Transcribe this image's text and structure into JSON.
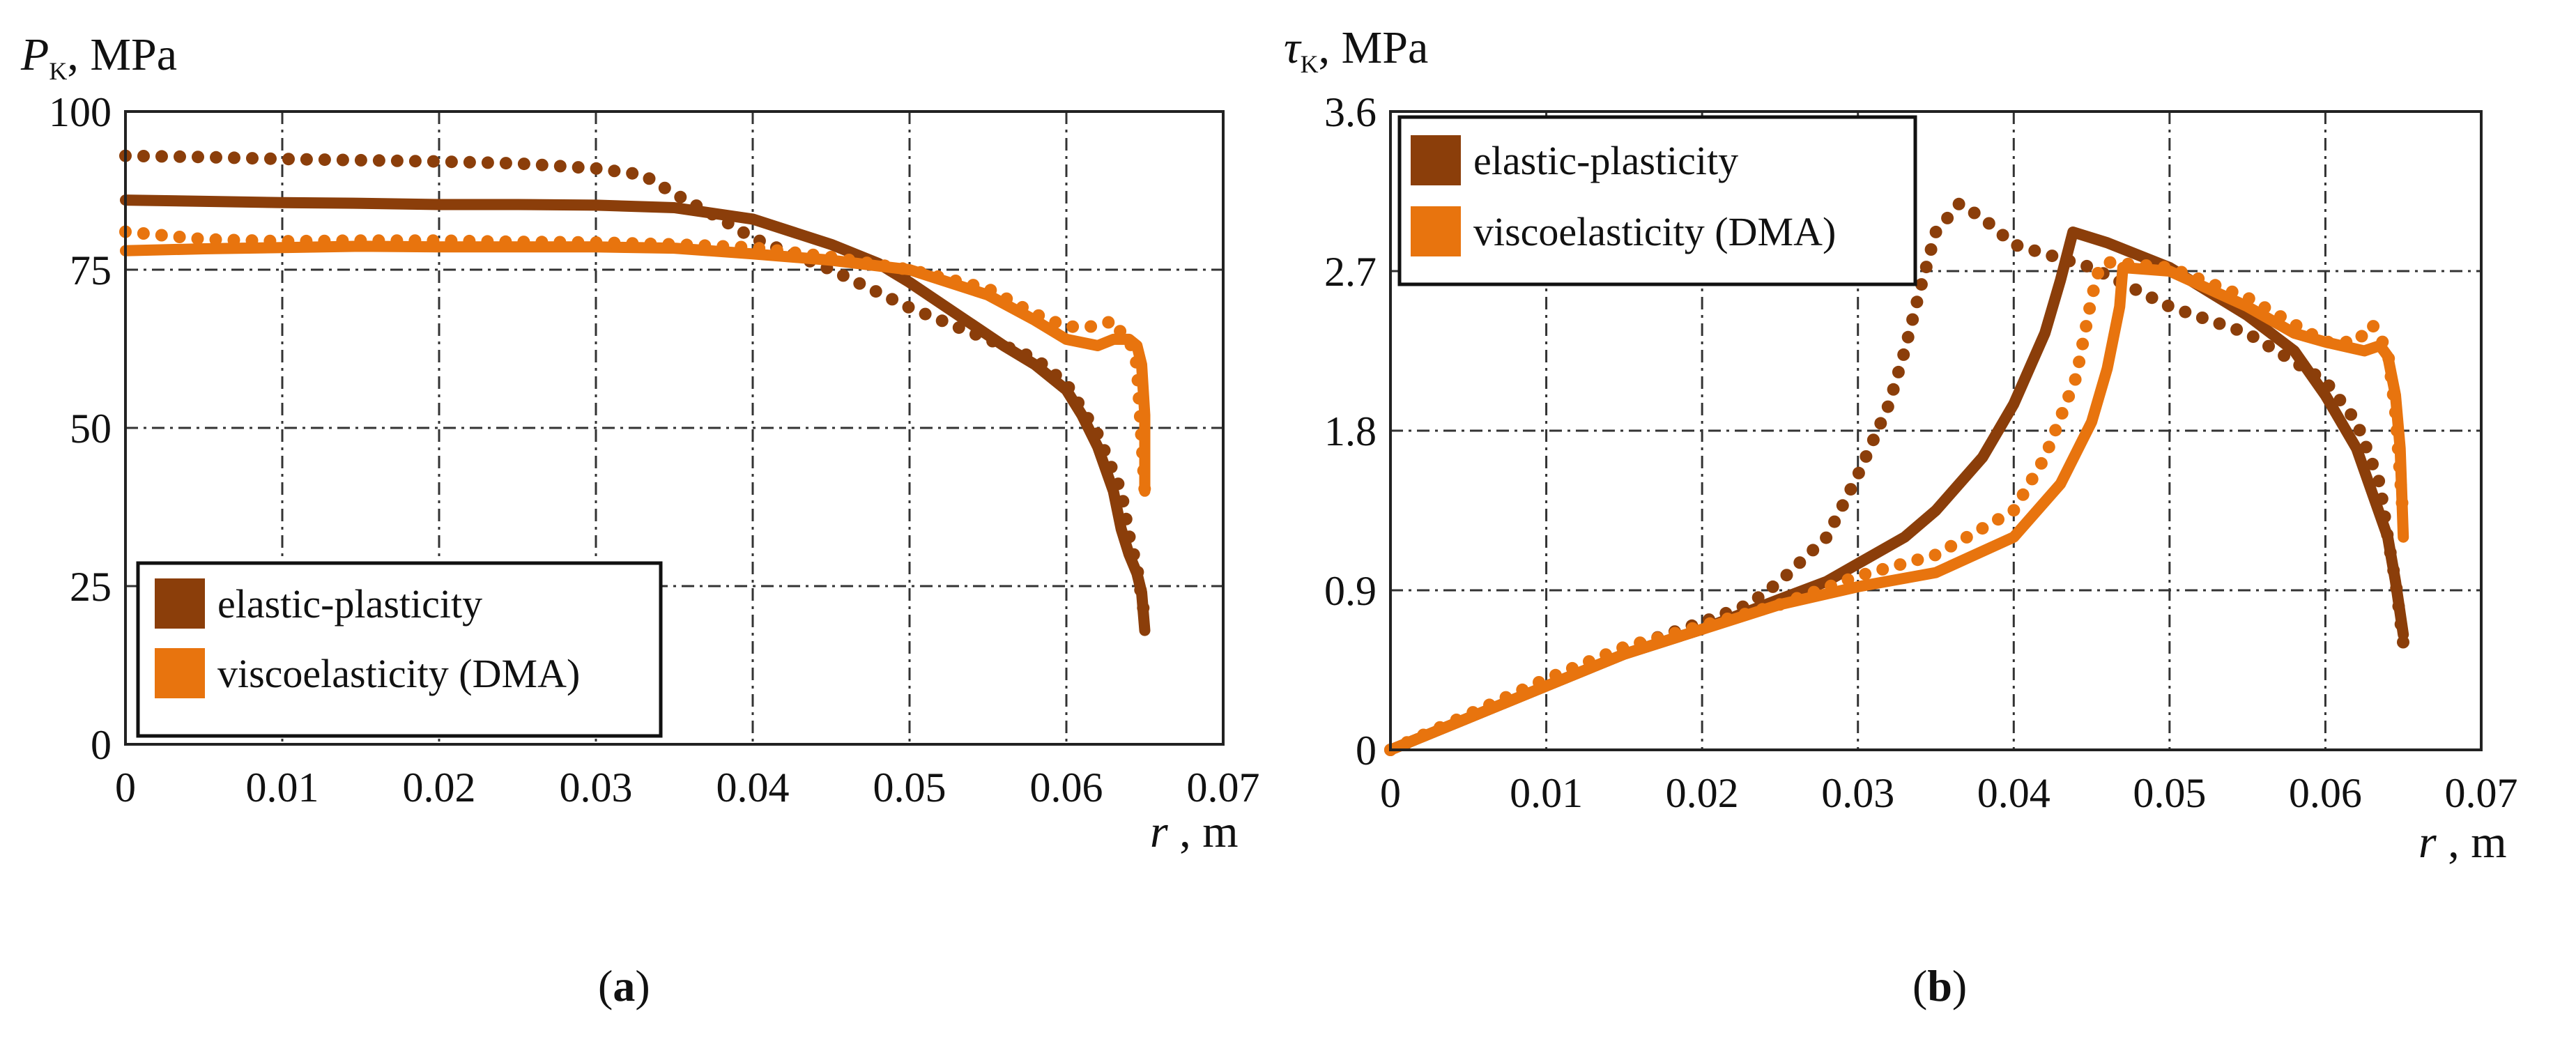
{
  "colors": {
    "elastic": "#8B3E0A",
    "visco": "#E8740E",
    "grid": "#333333"
  },
  "chart_data": [
    {
      "type": "line",
      "panel_label": "a",
      "ylabel": {
        "symbol": "P",
        "sub": "K",
        "unit": ", MPa"
      },
      "xlabel": {
        "symbol": "r",
        "unit": " , m"
      },
      "xlim": [
        0,
        0.07
      ],
      "ylim": [
        0,
        100
      ],
      "x_ticks": [
        "0",
        "0.01",
        "0.02",
        "0.03",
        "0.04",
        "0.05",
        "0.06",
        "0.07"
      ],
      "y_ticks": [
        "0",
        "25",
        "50",
        "75",
        "100"
      ],
      "grid": true,
      "legend": {
        "placement": "bottom-left",
        "entries": [
          "elastic-plasticity",
          "viscoelasticity (DMA)"
        ]
      },
      "series": [
        {
          "name": "elastic-plasticity",
          "style": "solid",
          "color": "elastic",
          "x": [
            0,
            0.005,
            0.01,
            0.015,
            0.02,
            0.025,
            0.03,
            0.035,
            0.04,
            0.045,
            0.048,
            0.05,
            0.053,
            0.056,
            0.058,
            0.06,
            0.061,
            0.062,
            0.063,
            0.0635,
            0.064,
            0.0645,
            0.0648,
            0.065
          ],
          "y": [
            86,
            85.8,
            85.6,
            85.5,
            85.3,
            85.3,
            85.2,
            84.8,
            83,
            79,
            76,
            73,
            68,
            63,
            60,
            56,
            52,
            47,
            40,
            34,
            30,
            27,
            24,
            18
          ]
        },
        {
          "name": "elastic-plasticity",
          "style": "dotted",
          "color": "elastic",
          "x": [
            0,
            0.005,
            0.01,
            0.015,
            0.02,
            0.025,
            0.03,
            0.033,
            0.035,
            0.038,
            0.04,
            0.045,
            0.05,
            0.055,
            0.058,
            0.06,
            0.062,
            0.0635,
            0.064,
            0.0645,
            0.065
          ],
          "y": [
            93,
            92.8,
            92.5,
            92.3,
            92.1,
            91.8,
            91,
            90,
            87,
            83,
            80,
            75,
            69,
            64,
            61,
            57,
            49,
            40,
            33,
            28,
            20
          ]
        },
        {
          "name": "viscoelasticity (DMA)",
          "style": "solid",
          "color": "visco",
          "x": [
            0,
            0.005,
            0.01,
            0.015,
            0.02,
            0.025,
            0.03,
            0.035,
            0.04,
            0.045,
            0.05,
            0.055,
            0.058,
            0.06,
            0.062,
            0.063,
            0.064,
            0.0645,
            0.0648,
            0.065,
            0.065
          ],
          "y": [
            78,
            78.3,
            78.5,
            78.7,
            78.6,
            78.6,
            78.6,
            78.4,
            77.5,
            76.5,
            75,
            71,
            67,
            64,
            63,
            64,
            64,
            63,
            60,
            52,
            40
          ]
        },
        {
          "name": "viscoelasticity (DMA)",
          "style": "dotted",
          "color": "visco",
          "x": [
            0,
            0.005,
            0.01,
            0.015,
            0.02,
            0.025,
            0.03,
            0.035,
            0.04,
            0.045,
            0.05,
            0.055,
            0.058,
            0.06,
            0.0615,
            0.0625,
            0.063,
            0.0635,
            0.064,
            0.0645,
            0.065
          ],
          "y": [
            81,
            79.8,
            79.5,
            79.6,
            79.6,
            79.4,
            79.3,
            79,
            78.5,
            77,
            75,
            72,
            68,
            66,
            66,
            66.5,
            67,
            65,
            64,
            60,
            40
          ]
        }
      ]
    },
    {
      "type": "line",
      "panel_label": "b",
      "ylabel": {
        "symbol": "τ",
        "sub": "K",
        "unit": ", MPa"
      },
      "xlabel": {
        "symbol": "r",
        "unit": " , m"
      },
      "xlim": [
        0,
        0.07
      ],
      "ylim": [
        0,
        3.6
      ],
      "x_ticks": [
        "0",
        "0.01",
        "0.02",
        "0.03",
        "0.04",
        "0.05",
        "0.06",
        "0.07"
      ],
      "y_ticks": [
        "0",
        "0.9",
        "1.8",
        "2.7",
        "3.6"
      ],
      "grid": true,
      "legend": {
        "placement": "top-left",
        "entries": [
          "elastic-plasticity",
          "viscoelasticity (DMA)"
        ]
      },
      "series": [
        {
          "name": "elastic-plasticity",
          "style": "solid",
          "color": "elastic",
          "x": [
            0,
            0.005,
            0.01,
            0.015,
            0.02,
            0.025,
            0.028,
            0.03,
            0.033,
            0.035,
            0.038,
            0.04,
            0.042,
            0.043,
            0.0438,
            0.046,
            0.05,
            0.055,
            0.058,
            0.06,
            0.062,
            0.063,
            0.064,
            0.0645,
            0.065
          ],
          "y": [
            0,
            0.18,
            0.36,
            0.54,
            0.68,
            0.85,
            0.95,
            1.05,
            1.2,
            1.35,
            1.65,
            1.95,
            2.35,
            2.65,
            2.92,
            2.86,
            2.72,
            2.45,
            2.25,
            2.0,
            1.7,
            1.45,
            1.2,
            0.95,
            0.65
          ]
        },
        {
          "name": "elastic-plasticity",
          "style": "dotted",
          "color": "elastic",
          "x": [
            0,
            0.005,
            0.01,
            0.015,
            0.02,
            0.023,
            0.025,
            0.028,
            0.03,
            0.032,
            0.033,
            0.034,
            0.035,
            0.0365,
            0.038,
            0.04,
            0.045,
            0.05,
            0.055,
            0.06,
            0.062,
            0.0635,
            0.064,
            0.0645,
            0.065
          ],
          "y": [
            0,
            0.19,
            0.38,
            0.57,
            0.72,
            0.82,
            0.95,
            1.2,
            1.55,
            1.95,
            2.25,
            2.6,
            2.92,
            3.08,
            3.0,
            2.85,
            2.72,
            2.5,
            2.35,
            2.08,
            1.85,
            1.5,
            1.2,
            0.95,
            0.6
          ]
        },
        {
          "name": "viscoelasticity (DMA)",
          "style": "solid",
          "color": "visco",
          "x": [
            0,
            0.005,
            0.01,
            0.015,
            0.02,
            0.025,
            0.03,
            0.035,
            0.04,
            0.043,
            0.045,
            0.046,
            0.0468,
            0.047,
            0.05,
            0.055,
            0.058,
            0.06,
            0.0625,
            0.0635,
            0.064,
            0.0645,
            0.0648,
            0.065
          ],
          "y": [
            0,
            0.18,
            0.36,
            0.54,
            0.68,
            0.82,
            0.92,
            1.0,
            1.2,
            1.5,
            1.85,
            2.15,
            2.5,
            2.72,
            2.7,
            2.5,
            2.35,
            2.3,
            2.25,
            2.28,
            2.22,
            2.0,
            1.7,
            1.2
          ]
        },
        {
          "name": "viscoelasticity (DMA)",
          "style": "dotted",
          "color": "visco",
          "x": [
            0,
            0.005,
            0.01,
            0.015,
            0.02,
            0.025,
            0.03,
            0.035,
            0.04,
            0.042,
            0.044,
            0.045,
            0.0455,
            0.046,
            0.05,
            0.055,
            0.058,
            0.06,
            0.062,
            0.063,
            0.064,
            0.0645,
            0.065
          ],
          "y": [
            0,
            0.2,
            0.4,
            0.58,
            0.7,
            0.82,
            0.98,
            1.1,
            1.35,
            1.65,
            2.1,
            2.55,
            2.72,
            2.75,
            2.72,
            2.55,
            2.4,
            2.3,
            2.3,
            2.4,
            2.25,
            1.9,
            1.3
          ]
        }
      ]
    }
  ]
}
